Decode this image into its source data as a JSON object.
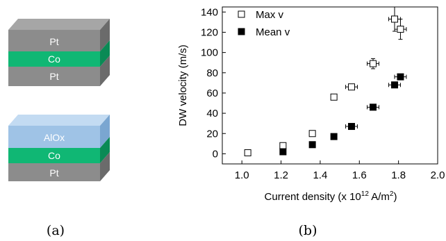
{
  "panel_a": {
    "stack1": {
      "top": "Pt",
      "middle": "Co",
      "bottom": "Pt"
    },
    "stack2": {
      "top": "AlOx",
      "middle": "Co",
      "bottom": "Pt"
    },
    "colors": {
      "pt_front": "#8c8c8c",
      "pt_side": "#6b6b6b",
      "pt_top": "#a6a6a6",
      "co_front": "#10b774",
      "co_side": "#0a8a55",
      "alox_front": "#9fc3e6",
      "alox_side": "#7aa6d1",
      "alox_top": "#c3dbf2"
    },
    "caption": "(a)"
  },
  "panel_b": {
    "caption": "(b)",
    "chart_data": {
      "type": "scatter",
      "xlabel": "Current density (x 10",
      "xlabel_sup": "12",
      "xlabel_unit": " A/m",
      "xlabel_sup2": "2",
      "xlabel_close": ")",
      "ylabel": "DW velocity (m/s)",
      "xlim": [
        0.9,
        2.0
      ],
      "ylim": [
        -10,
        145
      ],
      "x_ticks": [
        "1.0",
        "1.2",
        "1.4",
        "1.6",
        "1.8",
        "2.0"
      ],
      "x_tick_values": [
        1.0,
        1.2,
        1.4,
        1.6,
        1.8,
        2.0
      ],
      "y_ticks": [
        "0",
        "20",
        "40",
        "60",
        "80",
        "100",
        "120",
        "140"
      ],
      "y_tick_values": [
        0,
        20,
        40,
        60,
        80,
        100,
        120,
        140
      ],
      "legend_position": "top-left",
      "series": [
        {
          "name": "Max v",
          "marker": "open-square",
          "points": [
            {
              "x": 1.03,
              "y": 1,
              "xerr": 0,
              "yerr": 0
            },
            {
              "x": 1.21,
              "y": 8,
              "xerr": 0,
              "yerr": 0
            },
            {
              "x": 1.36,
              "y": 20,
              "xerr": 0,
              "yerr": 0
            },
            {
              "x": 1.47,
              "y": 56,
              "xerr": 0,
              "yerr": 0
            },
            {
              "x": 1.56,
              "y": 66,
              "xerr": 0.03,
              "yerr": 0
            },
            {
              "x": 1.67,
              "y": 89,
              "xerr": 0.03,
              "yerr": 5
            },
            {
              "x": 1.78,
              "y": 133,
              "xerr": 0.03,
              "yerr": 12
            },
            {
              "x": 1.81,
              "y": 123,
              "xerr": 0.03,
              "yerr": 10
            }
          ]
        },
        {
          "name": "Mean v",
          "marker": "filled-square",
          "points": [
            {
              "x": 1.21,
              "y": 2,
              "xerr": 0,
              "yerr": 0
            },
            {
              "x": 1.36,
              "y": 9,
              "xerr": 0,
              "yerr": 0
            },
            {
              "x": 1.47,
              "y": 17,
              "xerr": 0,
              "yerr": 0
            },
            {
              "x": 1.56,
              "y": 27,
              "xerr": 0.03,
              "yerr": 0
            },
            {
              "x": 1.67,
              "y": 46,
              "xerr": 0.03,
              "yerr": 0
            },
            {
              "x": 1.78,
              "y": 68,
              "xerr": 0.03,
              "yerr": 0
            },
            {
              "x": 1.81,
              "y": 76,
              "xerr": 0.03,
              "yerr": 0
            }
          ]
        }
      ]
    }
  }
}
